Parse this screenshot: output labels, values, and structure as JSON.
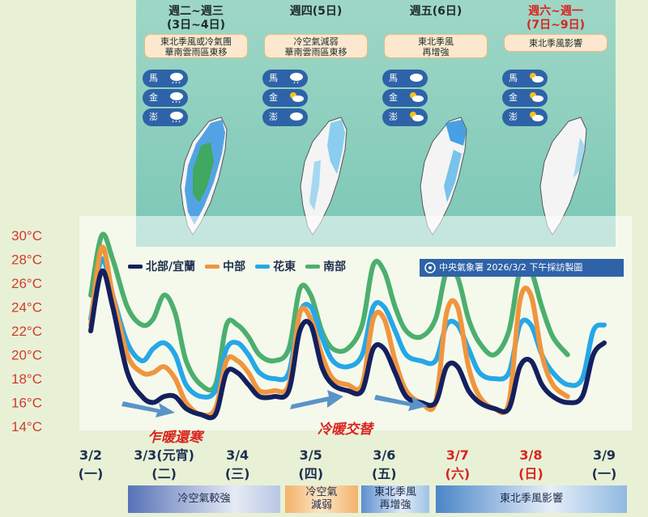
{
  "periods": [
    {
      "title_line1": "週二~週三",
      "title_line2": "(3日~4日)",
      "title_red": false,
      "desc_line1": "東北季風或冷氣團",
      "desc_line2": "華南雲雨區東移",
      "islands": [
        "馬",
        "金",
        "澎"
      ],
      "rain_color": "#1fa0e6"
    },
    {
      "title_line1": "週四(5日)",
      "title_line2": "",
      "title_red": false,
      "desc_line1": "冷空氣減弱",
      "desc_line2": "華南雲雨區東移",
      "islands": [
        "馬",
        "金",
        "澎"
      ],
      "rain_color": "#6fc3ee"
    },
    {
      "title_line1": "週五(6日)",
      "title_line2": "",
      "title_red": false,
      "desc_line1": "東北季風",
      "desc_line2": "再增強",
      "islands": [
        "馬",
        "金",
        "澎"
      ],
      "rain_color": "#36a9e8"
    },
    {
      "title_line1": "週六~週一",
      "title_line2": "(7日~9日)",
      "title_red": true,
      "desc_line1": "東北季風影響",
      "desc_line2": "",
      "islands": [
        "馬",
        "金",
        "澎"
      ],
      "rain_color": "#8fcfee"
    }
  ],
  "legend": {
    "north": "北部/宜蘭",
    "central": "中部",
    "east": "花東",
    "south": "南部"
  },
  "source": "中央氣象署 2026/3/2 下午採訪製圖",
  "notes": {
    "left": "乍暖還寒",
    "right": "冷暖交替"
  },
  "bottom_bars": [
    {
      "label": "冷空氣較強",
      "line2": ""
    },
    {
      "label": "冷空氣",
      "line2": "減弱"
    },
    {
      "label": "東北季風",
      "line2": "再增強"
    },
    {
      "label": "東北季風影響",
      "line2": ""
    }
  ],
  "chart_data": {
    "type": "line",
    "title": "",
    "ylabel": "",
    "yticks": [
      "14°C",
      "16°C",
      "18°C",
      "20°C",
      "22°C",
      "24°C",
      "26°C",
      "28°C",
      "30°C"
    ],
    "ylim": [
      14,
      30
    ],
    "categories": [
      {
        "date": "3/2",
        "day": "(一)",
        "red": false
      },
      {
        "date": "3/3(元宵)",
        "day": "(二)",
        "red": false
      },
      {
        "date": "3/4",
        "day": "(三)",
        "red": false
      },
      {
        "date": "3/5",
        "day": "(四)",
        "red": false
      },
      {
        "date": "3/6",
        "day": "(五)",
        "red": false
      },
      {
        "date": "3/7",
        "day": "(六)",
        "red": true
      },
      {
        "date": "3/8",
        "day": "(日)",
        "red": true
      },
      {
        "date": "3/9",
        "day": "(一)",
        "red": false
      }
    ],
    "x": [
      0,
      0.15,
      0.3,
      0.5,
      0.7,
      0.85,
      1,
      1.15,
      1.3,
      1.5,
      1.7,
      1.85,
      2,
      2.15,
      2.3,
      2.5,
      2.7,
      2.85,
      3,
      3.15,
      3.3,
      3.5,
      3.7,
      3.85,
      4,
      4.15,
      4.3,
      4.5,
      4.7,
      4.85,
      5,
      5.15,
      5.3,
      5.5,
      5.7,
      5.85,
      6,
      6.15,
      6.3,
      6.5,
      6.7,
      6.85,
      7
    ],
    "series": [
      {
        "name": "南部",
        "color": "#4caf6e",
        "values": [
          25,
          30,
          28,
          24,
          22.5,
          23,
          25,
          23.5,
          19.5,
          17.5,
          17.5,
          22.5,
          22.5,
          21.5,
          20,
          19.5,
          20.5,
          25.5,
          25,
          22,
          20.5,
          20.5,
          22.5,
          27.5,
          27,
          24,
          22,
          21.5,
          23,
          27,
          26.5,
          23,
          21,
          20,
          22,
          27,
          27,
          24,
          21.5,
          20,
          null,
          null,
          null
        ]
      },
      {
        "name": "花東",
        "color": "#25a7e8",
        "values": [
          23,
          28,
          25,
          21,
          19.5,
          20.5,
          21,
          20,
          17.5,
          16.5,
          17,
          20.5,
          21,
          20,
          18.5,
          18,
          18.5,
          23.5,
          24,
          21.5,
          19.5,
          19,
          20,
          24,
          24,
          22,
          20,
          19.5,
          19.5,
          22.5,
          22.5,
          20.5,
          18.5,
          18,
          18.5,
          22.5,
          22.5,
          20,
          18.5,
          17.5,
          18,
          22,
          22.5
        ]
      },
      {
        "name": "中部",
        "color": "#f0953e",
        "values": [
          22.5,
          29,
          25,
          20,
          18.5,
          18.5,
          19,
          18,
          16,
          15,
          15.5,
          19.5,
          19.5,
          18.5,
          17,
          17,
          17.5,
          23.5,
          23,
          20,
          18,
          17.5,
          17.5,
          23,
          23,
          19.5,
          17,
          16,
          16,
          23.5,
          24,
          19,
          16.5,
          15.5,
          16,
          24.5,
          25,
          20,
          17.5,
          16.5,
          null,
          null,
          null
        ]
      },
      {
        "name": "北部/宜蘭",
        "color": "#14205e",
        "values": [
          22,
          27,
          24,
          18.5,
          16.5,
          16,
          16.5,
          16.5,
          15.5,
          15,
          15,
          18.5,
          18.5,
          17.5,
          16.5,
          16.5,
          17,
          22,
          22.5,
          19,
          17.5,
          17,
          17,
          20.5,
          20.5,
          18.5,
          16.5,
          16,
          16,
          19,
          19,
          17,
          16,
          15.5,
          15.5,
          19,
          19.5,
          17.5,
          16.5,
          16,
          16.5,
          20,
          21
        ]
      }
    ],
    "grid": false,
    "legend_position": "top"
  }
}
